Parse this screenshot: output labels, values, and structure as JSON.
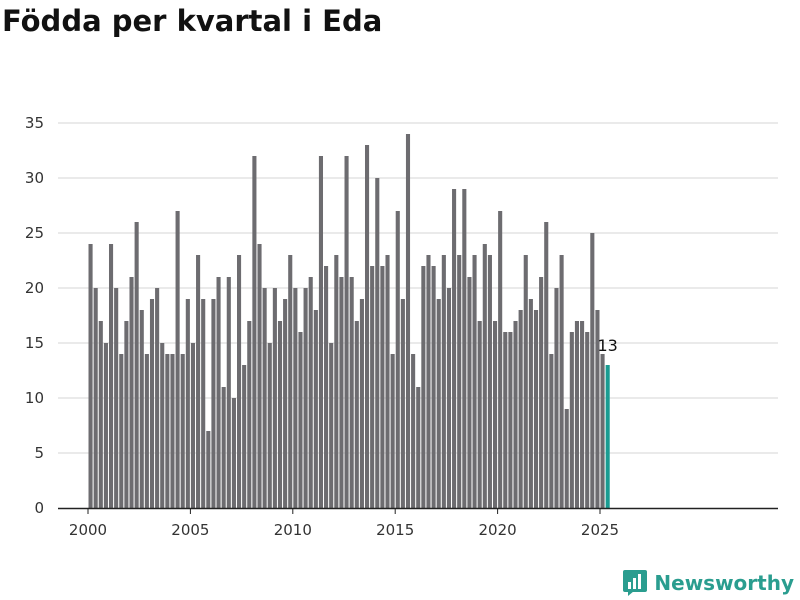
{
  "title": "Födda per kvartal i Eda",
  "brand": {
    "name": "Newsworthy",
    "icon": "newsworthy-logo-icon",
    "color": "#2a9d8f"
  },
  "colors": {
    "bar": "#6d6c70",
    "highlight": "#1a9c92",
    "grid": "#d6d6d6",
    "axis": "#222222"
  },
  "chart_data": {
    "type": "bar",
    "title": "Födda per kvartal i Eda",
    "xlabel": "",
    "ylabel": "",
    "start_year": 2000,
    "ylim": [
      0,
      35
    ],
    "yticks": [
      0,
      5,
      10,
      15,
      20,
      25,
      30,
      35
    ],
    "xticks": [
      2000,
      2005,
      2010,
      2015,
      2020,
      2025
    ],
    "grid": true,
    "legend": "none",
    "values": [
      24,
      20,
      17,
      15,
      24,
      20,
      14,
      17,
      21,
      26,
      18,
      14,
      19,
      20,
      15,
      14,
      14,
      27,
      14,
      19,
      15,
      23,
      19,
      7,
      19,
      21,
      11,
      21,
      10,
      23,
      13,
      17,
      32,
      24,
      20,
      15,
      20,
      17,
      19,
      23,
      20,
      16,
      20,
      21,
      18,
      32,
      22,
      15,
      23,
      21,
      32,
      21,
      17,
      19,
      33,
      22,
      30,
      22,
      23,
      14,
      27,
      19,
      34,
      14,
      11,
      22,
      23,
      22,
      19,
      23,
      20,
      29,
      23,
      29,
      21,
      23,
      17,
      24,
      23,
      17,
      27,
      16,
      16,
      17,
      18,
      23,
      19,
      18,
      21,
      26,
      14,
      20,
      23,
      9,
      16,
      17,
      17,
      16,
      25,
      18,
      14,
      13
    ],
    "highlight_last": true,
    "data_label": "13"
  }
}
